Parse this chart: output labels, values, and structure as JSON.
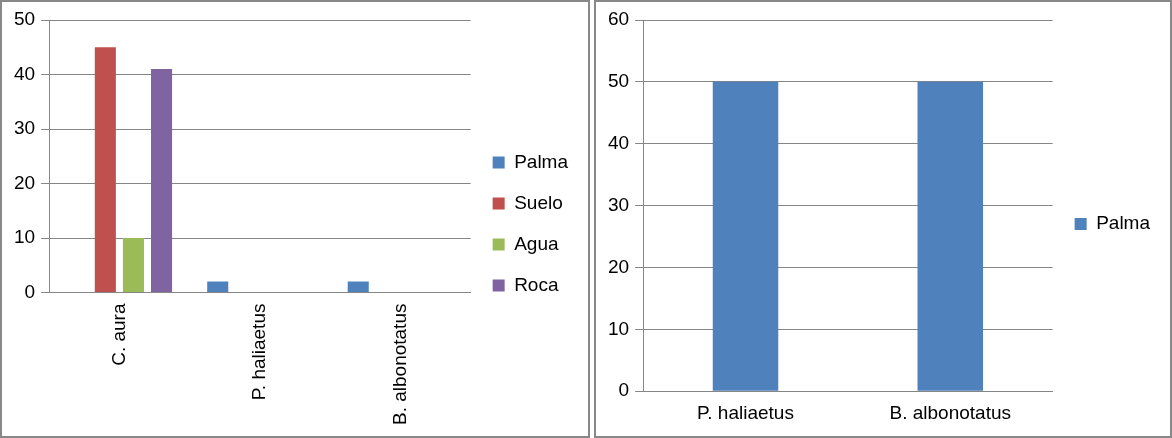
{
  "chart_data": [
    {
      "type": "bar",
      "categories": [
        "C. aura",
        "P. haliaetus",
        "B. albonotatus"
      ],
      "series": [
        {
          "name": "Palma",
          "color": "#4f81bd",
          "values": [
            0,
            2,
            2
          ]
        },
        {
          "name": "Suelo",
          "color": "#c0504d",
          "values": [
            45,
            0,
            0
          ]
        },
        {
          "name": "Agua",
          "color": "#9bbb59",
          "values": [
            10,
            0,
            0
          ]
        },
        {
          "name": "Roca",
          "color": "#8064a2",
          "values": [
            41,
            0,
            0
          ]
        }
      ],
      "ylim": [
        0,
        50
      ],
      "yticks": [
        0,
        10,
        20,
        30,
        40,
        50
      ],
      "grid": "y",
      "legend": "right"
    },
    {
      "type": "bar",
      "categories": [
        "P. haliaetus",
        "B. albonotatus"
      ],
      "series": [
        {
          "name": "Palma",
          "color": "#4f81bd",
          "values": [
            50,
            50
          ]
        }
      ],
      "ylim": [
        0,
        60
      ],
      "yticks": [
        0,
        10,
        20,
        30,
        40,
        50,
        60
      ],
      "grid": "y",
      "legend": "right"
    }
  ]
}
